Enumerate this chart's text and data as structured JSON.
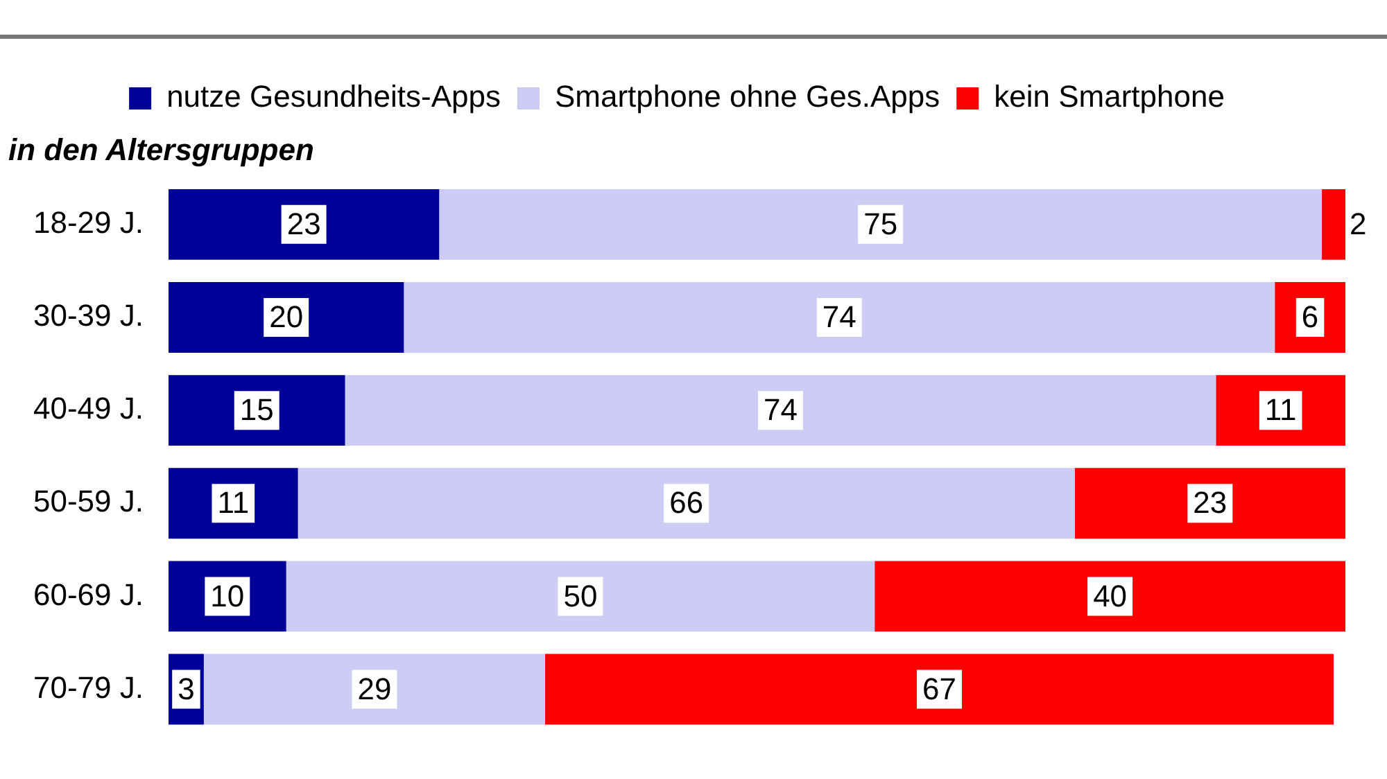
{
  "chart_data": {
    "type": "bar",
    "orientation": "horizontal",
    "stacked": true,
    "ylabel": "in den Altersgruppen",
    "categories": [
      "18-29 J.",
      "30-39 J.",
      "40-49 J.",
      "50-59 J.",
      "60-69 J.",
      "70-79 J."
    ],
    "series": [
      {
        "name": "nutze Gesundheits-Apps",
        "color": "#000099",
        "values": [
          23,
          20,
          15,
          11,
          10,
          3
        ]
      },
      {
        "name": "Smartphone ohne Ges.Apps",
        "color": "#ccccf5",
        "values": [
          75,
          74,
          74,
          66,
          50,
          29
        ]
      },
      {
        "name": "kein Smartphone",
        "color": "#ff0000",
        "values": [
          2,
          6,
          11,
          23,
          40,
          67
        ]
      }
    ],
    "data_labels": true,
    "legend": "top",
    "grid": false,
    "tick_labels": "y"
  }
}
